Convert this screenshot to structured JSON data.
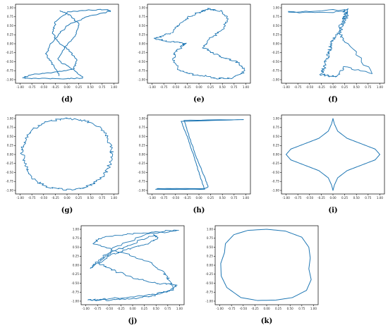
{
  "figure": {
    "line_color": "#1f77b4",
    "ticks": {
      "x": [
        "-1.00",
        "-0.75",
        "-0.50",
        "-0.25",
        "0.00",
        "0.25",
        "0.50",
        "0.75",
        "1.00"
      ],
      "y": [
        "1.00",
        "0.75",
        "0.50",
        "0.25",
        "0.00",
        "-0.25",
        "-0.50",
        "-0.75",
        "-1.00"
      ]
    }
  },
  "chart_data": [
    {
      "type": "line",
      "label": "(d)",
      "xlim": [
        -1.0,
        1.0
      ],
      "ylim": [
        -1.0,
        1.0
      ],
      "noise": 0.02,
      "series": [
        {
          "x": [
            -0.15,
            -0.3,
            -0.45,
            -0.35,
            -0.15,
            0.05,
            0.45,
            0.92,
            0.85,
            0.35,
            0.0,
            -0.25,
            -0.3,
            -0.2,
            0.05,
            0.2,
            0.15,
            -0.3,
            -0.75,
            -0.95,
            -0.6,
            0.0,
            0.35,
            0.1,
            -0.2,
            -0.05,
            0.2,
            0.25,
            0.05,
            -0.15
          ],
          "y": [
            -0.9,
            -0.6,
            -0.3,
            0.0,
            0.3,
            0.55,
            0.75,
            0.9,
            0.95,
            0.93,
            0.88,
            0.6,
            0.3,
            0.05,
            -0.2,
            -0.45,
            -0.7,
            -0.8,
            -0.85,
            -0.95,
            -0.97,
            -0.97,
            -0.95,
            -0.7,
            -0.45,
            -0.1,
            0.25,
            0.55,
            0.8,
            0.92
          ]
        }
      ]
    },
    {
      "type": "line",
      "label": "(e)",
      "xlim": [
        -1.0,
        1.0
      ],
      "ylim": [
        -1.0,
        1.0
      ],
      "noise": 0.035,
      "series": [
        {
          "x": [
            -0.6,
            -0.4,
            -0.2,
            0.05,
            0.2,
            0.3,
            0.5,
            0.62,
            0.5,
            0.25,
            0.1,
            0.3,
            0.55,
            0.8,
            0.95,
            0.95,
            0.7,
            0.4,
            0.15,
            -0.15,
            -0.4,
            -0.55,
            -0.5,
            -0.35,
            -0.3,
            -0.55,
            -0.8,
            -0.95,
            -0.8,
            -0.6
          ],
          "y": [
            0.3,
            0.55,
            0.75,
            0.9,
            0.97,
            0.95,
            0.9,
            0.7,
            0.4,
            0.15,
            -0.1,
            -0.25,
            -0.4,
            -0.5,
            -0.65,
            -0.8,
            -0.95,
            -0.97,
            -0.9,
            -0.85,
            -0.75,
            -0.5,
            -0.25,
            -0.05,
            0.0,
            0.05,
            0.1,
            0.15,
            0.2,
            0.3
          ]
        }
      ]
    },
    {
      "type": "line",
      "label": "(f)",
      "xlim": [
        -1.0,
        1.0
      ],
      "ylim": [
        -1.0,
        1.0
      ],
      "noise": 0.04,
      "series": [
        {
          "x": [
            -0.95,
            0.2,
            0.3,
            0.25,
            0.18,
            0.1,
            0.0,
            -0.05,
            -0.1,
            -0.15,
            -0.2,
            -0.25,
            -0.1,
            0.1,
            0.25,
            0.85,
            0.3,
            0.15,
            0.2,
            0.3,
            0.25,
            -0.95
          ],
          "y": [
            0.88,
            0.88,
            0.95,
            0.75,
            0.55,
            0.3,
            0.1,
            -0.1,
            -0.3,
            -0.5,
            -0.7,
            -0.85,
            -0.9,
            -0.9,
            -0.65,
            -0.82,
            0.0,
            0.25,
            0.5,
            0.75,
            0.95,
            0.88
          ]
        }
      ]
    },
    {
      "type": "line",
      "label": "(g)",
      "xlim": [
        -1.0,
        1.0
      ],
      "ylim": [
        -1.0,
        1.0
      ],
      "noise": 0.045,
      "series": [
        {
          "x": [
            0.0,
            0.4,
            0.7,
            0.88,
            0.95,
            0.92,
            0.8,
            0.6,
            0.35,
            0.0,
            -0.35,
            -0.62,
            -0.82,
            -0.94,
            -0.96,
            -0.85,
            -0.65,
            -0.35,
            0.0
          ],
          "y": [
            1.0,
            0.93,
            0.75,
            0.45,
            0.1,
            -0.25,
            -0.55,
            -0.8,
            -0.94,
            -0.98,
            -0.93,
            -0.78,
            -0.5,
            -0.15,
            0.2,
            0.5,
            0.78,
            0.94,
            1.0
          ]
        }
      ]
    },
    {
      "type": "line",
      "label": "(h)",
      "xlim": [
        -1.0,
        1.0
      ],
      "ylim": [
        -1.0,
        1.0
      ],
      "noise": 0.006,
      "series": [
        {
          "x": [
            0.95,
            -0.32,
            -0.18,
            -0.05,
            0.08,
            0.2,
            0.12,
            -0.88,
            -0.92,
            0.12,
            0.0,
            -0.12,
            -0.25,
            -0.38,
            0.95
          ],
          "y": [
            0.97,
            0.95,
            0.4,
            -0.1,
            -0.5,
            -0.9,
            -0.95,
            -0.95,
            -0.97,
            -0.97,
            -0.5,
            0.0,
            0.5,
            0.92,
            0.97
          ]
        }
      ]
    },
    {
      "type": "line",
      "label": "(i)",
      "xlim": [
        -1.0,
        1.0
      ],
      "ylim": [
        -1.0,
        1.0
      ],
      "noise": 0.0,
      "series": [
        {
          "x": [
            0.0,
            0.03,
            0.1,
            0.3,
            0.6,
            0.9,
            1.0,
            0.9,
            0.6,
            0.3,
            0.1,
            0.03,
            0.0,
            -0.03,
            -0.1,
            -0.3,
            -0.6,
            -0.9,
            -1.0,
            -0.9,
            -0.6,
            -0.3,
            -0.1,
            -0.03,
            0.0
          ],
          "y": [
            1.0,
            0.85,
            0.65,
            0.45,
            0.3,
            0.15,
            0.0,
            -0.15,
            -0.3,
            -0.45,
            -0.65,
            -0.85,
            -1.0,
            -0.85,
            -0.65,
            -0.45,
            -0.3,
            -0.15,
            0.0,
            0.15,
            0.3,
            0.45,
            0.65,
            0.85,
            1.0
          ]
        }
      ]
    },
    {
      "type": "line",
      "label": "(j)",
      "xlim": [
        -1.0,
        1.0
      ],
      "ylim": [
        -1.0,
        1.0
      ],
      "noise": 0.035,
      "series": [
        {
          "x": [
            0.95,
            0.4,
            -0.2,
            -0.7,
            -0.85,
            -0.5,
            0.0,
            0.4,
            0.65,
            0.8,
            0.85,
            0.4,
            -0.2,
            -0.7,
            -0.95,
            -0.5,
            0.0,
            0.45,
            0.75,
            0.95,
            0.5,
            0.0,
            -0.4,
            -0.7,
            -0.55,
            -0.1,
            0.3,
            0.55,
            0.45,
            0.0,
            -0.45,
            -0.75,
            -0.9,
            -0.4,
            0.3,
            0.95
          ],
          "y": [
            0.97,
            0.92,
            0.85,
            0.75,
            0.6,
            0.45,
            0.25,
            0.05,
            -0.2,
            -0.45,
            -0.7,
            -0.82,
            -0.9,
            -0.95,
            -0.97,
            -0.97,
            -0.93,
            -0.85,
            -0.72,
            -0.55,
            -0.5,
            -0.35,
            -0.15,
            0.05,
            0.25,
            0.45,
            0.6,
            0.75,
            0.85,
            0.6,
            0.35,
            0.1,
            -0.1,
            0.5,
            0.85,
            0.97
          ]
        }
      ]
    },
    {
      "type": "line",
      "label": "(k)",
      "xlim": [
        -1.0,
        1.0
      ],
      "ylim": [
        -1.0,
        1.0
      ],
      "noise": 0.0,
      "series": [
        {
          "x": [
            0.0,
            0.4,
            0.75,
            0.9,
            0.93,
            0.9,
            0.95,
            0.85,
            0.55,
            0.2,
            -0.2,
            -0.55,
            -0.85,
            -0.97,
            -0.98,
            -0.9,
            -0.88,
            -0.7,
            -0.4,
            0.0
          ],
          "y": [
            1.0,
            0.95,
            0.78,
            0.5,
            0.2,
            -0.1,
            -0.4,
            -0.7,
            -0.9,
            -0.97,
            -0.98,
            -0.9,
            -0.62,
            -0.3,
            0.05,
            0.35,
            0.6,
            0.85,
            0.97,
            1.0
          ]
        }
      ]
    }
  ]
}
